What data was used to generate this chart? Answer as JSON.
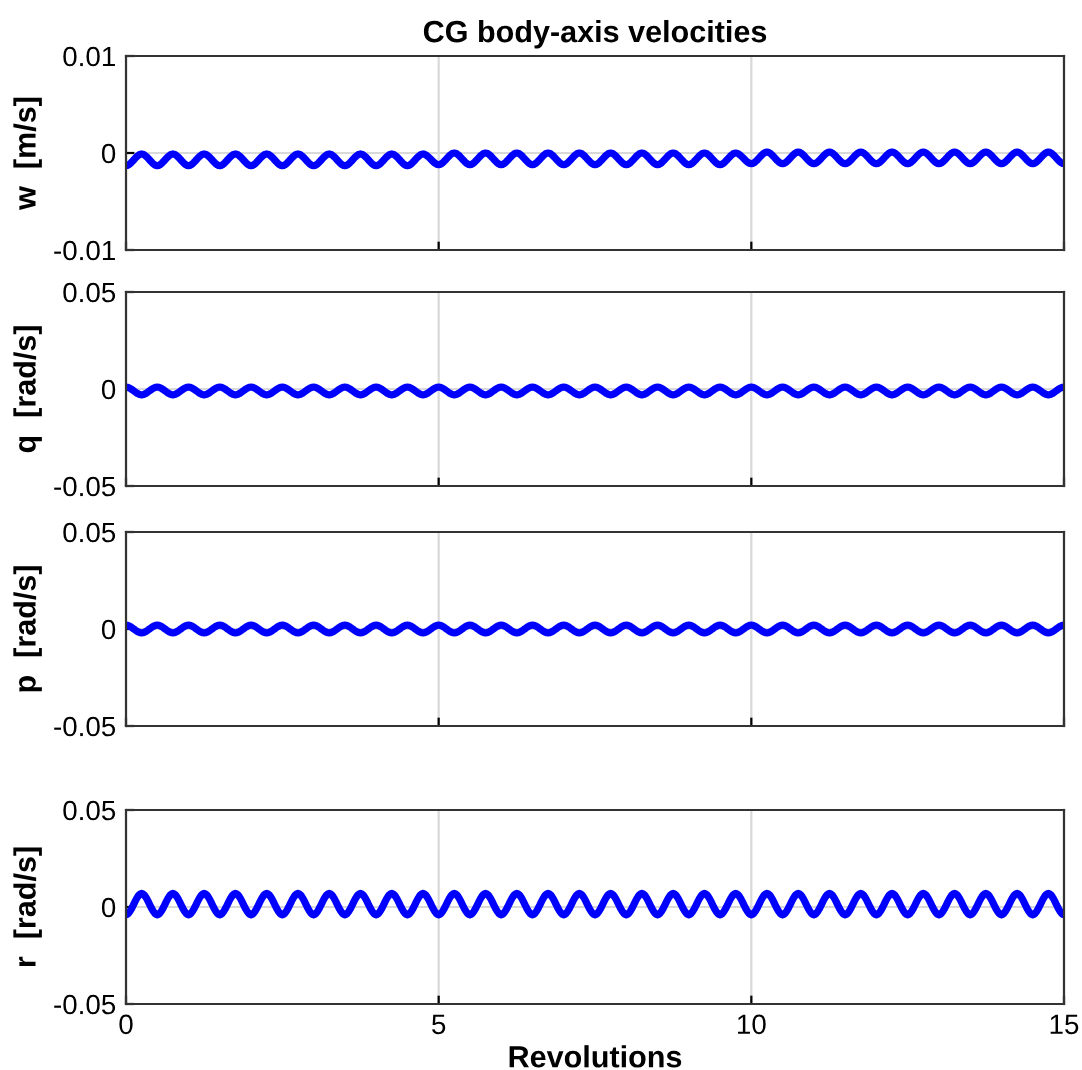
{
  "chart_data": [
    {
      "type": "line",
      "title": "CG body-axis velocities",
      "ylabel": "w  [m/s]",
      "x": [
        0,
        0.25,
        0.5,
        0.75,
        1,
        1.25,
        1.5,
        1.75,
        2,
        2.25,
        2.5,
        2.75,
        3,
        3.25,
        3.5,
        3.75,
        4,
        4.25,
        4.5,
        4.75,
        5,
        5.25,
        5.5,
        5.75,
        6,
        6.25,
        6.5,
        6.75,
        7,
        7.25,
        7.5,
        7.75,
        8,
        8.25,
        8.5,
        8.75,
        9,
        9.25,
        9.5,
        9.75,
        10,
        10.25,
        10.5,
        10.75,
        11,
        11.25,
        11.5,
        11.75,
        12,
        12.25,
        12.5,
        12.75,
        13,
        13.25,
        13.5,
        13.75,
        14,
        14.25,
        14.5,
        14.75,
        15
      ],
      "series": [
        {
          "color": "#0000ff",
          "values": [
            -0.0013,
            -0.0001,
            -0.0013,
            -0.0001,
            -0.0013,
            -0.0001,
            -0.0013,
            -0.0001,
            -0.0013,
            -0.0001,
            -0.0013,
            -0.0001,
            -0.0013,
            -0.0001,
            -0.0013,
            -0.0001,
            -0.0013,
            -0.0001,
            -0.0013,
            -0.0001,
            -0.0012,
            0,
            -0.0012,
            0,
            -0.0012,
            0,
            -0.0012,
            0,
            -0.0012,
            0,
            -0.0012,
            0,
            -0.0012,
            0,
            -0.0012,
            0,
            -0.0012,
            0,
            -0.0012,
            0,
            -0.0011,
            0.0001,
            -0.0011,
            0.0001,
            -0.0011,
            0.0001,
            -0.0011,
            0.0001,
            -0.0011,
            0.0001,
            -0.0011,
            0.0001,
            -0.0011,
            0.0001,
            -0.0011,
            0.0001,
            -0.0011,
            0.0001,
            -0.0011,
            0.0001,
            -0.0011
          ]
        }
      ],
      "xlim": [
        0,
        15
      ],
      "xticks": [
        0,
        5,
        10,
        15
      ],
      "ylim": [
        -0.01,
        0.01
      ],
      "yticks": [
        -0.01,
        0,
        0.01
      ],
      "grid": true,
      "tick_labels": "y"
    },
    {
      "type": "line",
      "ylabel": "q  [rad/s]",
      "x": [
        0,
        0.25,
        0.5,
        0.75,
        1,
        1.25,
        1.5,
        1.75,
        2,
        2.25,
        2.5,
        2.75,
        3,
        3.25,
        3.5,
        3.75,
        4,
        4.25,
        4.5,
        4.75,
        5,
        5.25,
        5.5,
        5.75,
        6,
        6.25,
        6.5,
        6.75,
        7,
        7.25,
        7.5,
        7.75,
        8,
        8.25,
        8.5,
        8.75,
        9,
        9.25,
        9.5,
        9.75,
        10,
        10.25,
        10.5,
        10.75,
        11,
        11.25,
        11.5,
        11.75,
        12,
        12.25,
        12.5,
        12.75,
        13,
        13.25,
        13.5,
        13.75,
        14,
        14.25,
        14.5,
        14.75,
        15
      ],
      "series": [
        {
          "color": "#0000ff",
          "values": [
            0.001,
            -0.003,
            0.001,
            -0.003,
            0.001,
            -0.003,
            0.001,
            -0.003,
            0.001,
            -0.003,
            0.001,
            -0.003,
            0.001,
            -0.003,
            0.001,
            -0.003,
            0.001,
            -0.003,
            0.001,
            -0.003,
            0.001,
            -0.003,
            0.001,
            -0.003,
            0.001,
            -0.003,
            0.001,
            -0.003,
            0.001,
            -0.003,
            0.001,
            -0.003,
            0.001,
            -0.003,
            0.001,
            -0.003,
            0.001,
            -0.003,
            0.001,
            -0.003,
            0.001,
            -0.003,
            0.001,
            -0.003,
            0.001,
            -0.003,
            0.001,
            -0.003,
            0.001,
            -0.003,
            0.001,
            -0.003,
            0.001,
            -0.003,
            0.001,
            -0.003,
            0.001,
            -0.003,
            0.001,
            -0.003,
            0.001
          ]
        }
      ],
      "xlim": [
        0,
        15
      ],
      "xticks": [
        0,
        5,
        10,
        15
      ],
      "ylim": [
        -0.05,
        0.05
      ],
      "yticks": [
        -0.05,
        0,
        0.05
      ],
      "grid": true,
      "tick_labels": "y"
    },
    {
      "type": "line",
      "ylabel": "p  [rad/s]",
      "x": [
        0,
        0.25,
        0.5,
        0.75,
        1,
        1.25,
        1.5,
        1.75,
        2,
        2.25,
        2.5,
        2.75,
        3,
        3.25,
        3.5,
        3.75,
        4,
        4.25,
        4.5,
        4.75,
        5,
        5.25,
        5.5,
        5.75,
        6,
        6.25,
        6.5,
        6.75,
        7,
        7.25,
        7.5,
        7.75,
        8,
        8.25,
        8.5,
        8.75,
        9,
        9.25,
        9.5,
        9.75,
        10,
        10.25,
        10.5,
        10.75,
        11,
        11.25,
        11.5,
        11.75,
        12,
        12.25,
        12.5,
        12.75,
        13,
        13.25,
        13.5,
        13.75,
        14,
        14.25,
        14.5,
        14.75,
        15
      ],
      "series": [
        {
          "color": "#0000ff",
          "values": [
            0.002,
            -0.002,
            0.002,
            -0.002,
            0.002,
            -0.002,
            0.002,
            -0.002,
            0.002,
            -0.002,
            0.002,
            -0.002,
            0.002,
            -0.002,
            0.002,
            -0.002,
            0.002,
            -0.002,
            0.002,
            -0.002,
            0.002,
            -0.002,
            0.002,
            -0.002,
            0.002,
            -0.002,
            0.002,
            -0.002,
            0.002,
            -0.002,
            0.002,
            -0.002,
            0.002,
            -0.002,
            0.002,
            -0.002,
            0.002,
            -0.002,
            0.002,
            -0.002,
            0.002,
            -0.002,
            0.002,
            -0.002,
            0.002,
            -0.002,
            0.002,
            -0.002,
            0.002,
            -0.002,
            0.002,
            -0.002,
            0.002,
            -0.002,
            0.002,
            -0.002,
            0.002,
            -0.002,
            0.002,
            -0.002,
            0.002
          ]
        }
      ],
      "xlim": [
        0,
        15
      ],
      "xticks": [
        0,
        5,
        10,
        15
      ],
      "ylim": [
        -0.05,
        0.05
      ],
      "yticks": [
        -0.05,
        0,
        0.05
      ],
      "grid": true,
      "tick_labels": "y"
    },
    {
      "type": "line",
      "ylabel": "r  [rad/s]",
      "xlabel": "Revolutions",
      "x": [
        0,
        0.25,
        0.5,
        0.75,
        1,
        1.25,
        1.5,
        1.75,
        2,
        2.25,
        2.5,
        2.75,
        3,
        3.25,
        3.5,
        3.75,
        4,
        4.25,
        4.5,
        4.75,
        5,
        5.25,
        5.5,
        5.75,
        6,
        6.25,
        6.5,
        6.75,
        7,
        7.25,
        7.5,
        7.75,
        8,
        8.25,
        8.5,
        8.75,
        9,
        9.25,
        9.5,
        9.75,
        10,
        10.25,
        10.5,
        10.75,
        11,
        11.25,
        11.5,
        11.75,
        12,
        12.25,
        12.5,
        12.75,
        13,
        13.25,
        13.5,
        13.75,
        14,
        14.25,
        14.5,
        14.75,
        15
      ],
      "series": [
        {
          "color": "#0000ff",
          "values": [
            -0.004,
            0.007,
            -0.004,
            0.007,
            -0.004,
            0.007,
            -0.004,
            0.007,
            -0.004,
            0.007,
            -0.004,
            0.007,
            -0.004,
            0.007,
            -0.004,
            0.007,
            -0.004,
            0.007,
            -0.004,
            0.007,
            -0.004,
            0.007,
            -0.004,
            0.007,
            -0.004,
            0.007,
            -0.004,
            0.007,
            -0.004,
            0.007,
            -0.004,
            0.007,
            -0.004,
            0.007,
            -0.004,
            0.007,
            -0.004,
            0.007,
            -0.004,
            0.007,
            -0.004,
            0.007,
            -0.004,
            0.007,
            -0.004,
            0.007,
            -0.004,
            0.007,
            -0.004,
            0.007,
            -0.004,
            0.007,
            -0.004,
            0.007,
            -0.004,
            0.007,
            -0.004,
            0.007,
            -0.004,
            0.007,
            -0.004
          ]
        }
      ],
      "xlim": [
        0,
        15
      ],
      "xticks": [
        0,
        5,
        10,
        15
      ],
      "ylim": [
        -0.05,
        0.05
      ],
      "yticks": [
        -0.05,
        0,
        0.05
      ],
      "grid": true
    }
  ]
}
